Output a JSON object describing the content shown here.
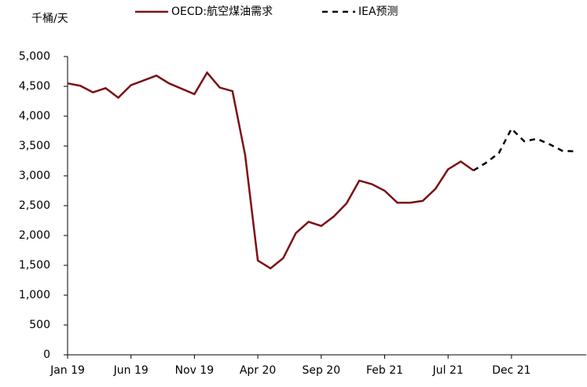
{
  "chart_data": {
    "type": "line",
    "y_axis_label": "千桶/天",
    "categories": [
      "Jan 19",
      null,
      null,
      null,
      null,
      "Jun 19",
      null,
      null,
      null,
      null,
      "Nov 19",
      null,
      null,
      null,
      null,
      "Apr 20",
      null,
      null,
      null,
      null,
      "Sep 20",
      null,
      null,
      null,
      null,
      "Feb 21",
      null,
      null,
      null,
      null,
      "Jul 21",
      null,
      null,
      null,
      null,
      "Dec 21",
      null,
      null,
      null,
      null,
      null
    ],
    "series": [
      {
        "name": "OECD:航空煤油需求",
        "color": "#7b1113",
        "dash": false,
        "values": [
          4550,
          4510,
          4400,
          4470,
          4310,
          4520,
          4600,
          4680,
          4550,
          4460,
          4370,
          4730,
          4480,
          4420,
          3350,
          1580,
          1450,
          1620,
          2040,
          2230,
          2160,
          2320,
          2540,
          2920,
          2860,
          2750,
          2550,
          2550,
          2580,
          2780,
          3110,
          3240,
          3090,
          null,
          null,
          null,
          null,
          null,
          null,
          null,
          null
        ]
      },
      {
        "name": "IEA预测",
        "color": "#000000",
        "dash": true,
        "values": [
          null,
          null,
          null,
          null,
          null,
          null,
          null,
          null,
          null,
          null,
          null,
          null,
          null,
          null,
          null,
          null,
          null,
          null,
          null,
          null,
          null,
          null,
          null,
          null,
          null,
          null,
          null,
          null,
          null,
          null,
          null,
          null,
          3090,
          3220,
          3380,
          3790,
          3580,
          3620,
          3530,
          3420,
          3410
        ]
      }
    ],
    "ylim": [
      0,
      5000
    ],
    "yticks": [
      0,
      500,
      {
        "value": 1000,
        "label": "1,000"
      },
      {
        "value": 1500,
        "label": "1,500"
      },
      {
        "value": 2000,
        "label": "2,000"
      },
      {
        "value": 2500,
        "label": "2,500"
      },
      {
        "value": 3000,
        "label": "3,000"
      },
      {
        "value": 3500,
        "label": "3,500"
      },
      {
        "value": 4000,
        "label": "4,000"
      },
      {
        "value": 4500,
        "label": "4,500"
      },
      {
        "value": 5000,
        "label": "5,000"
      }
    ],
    "grid": false
  }
}
